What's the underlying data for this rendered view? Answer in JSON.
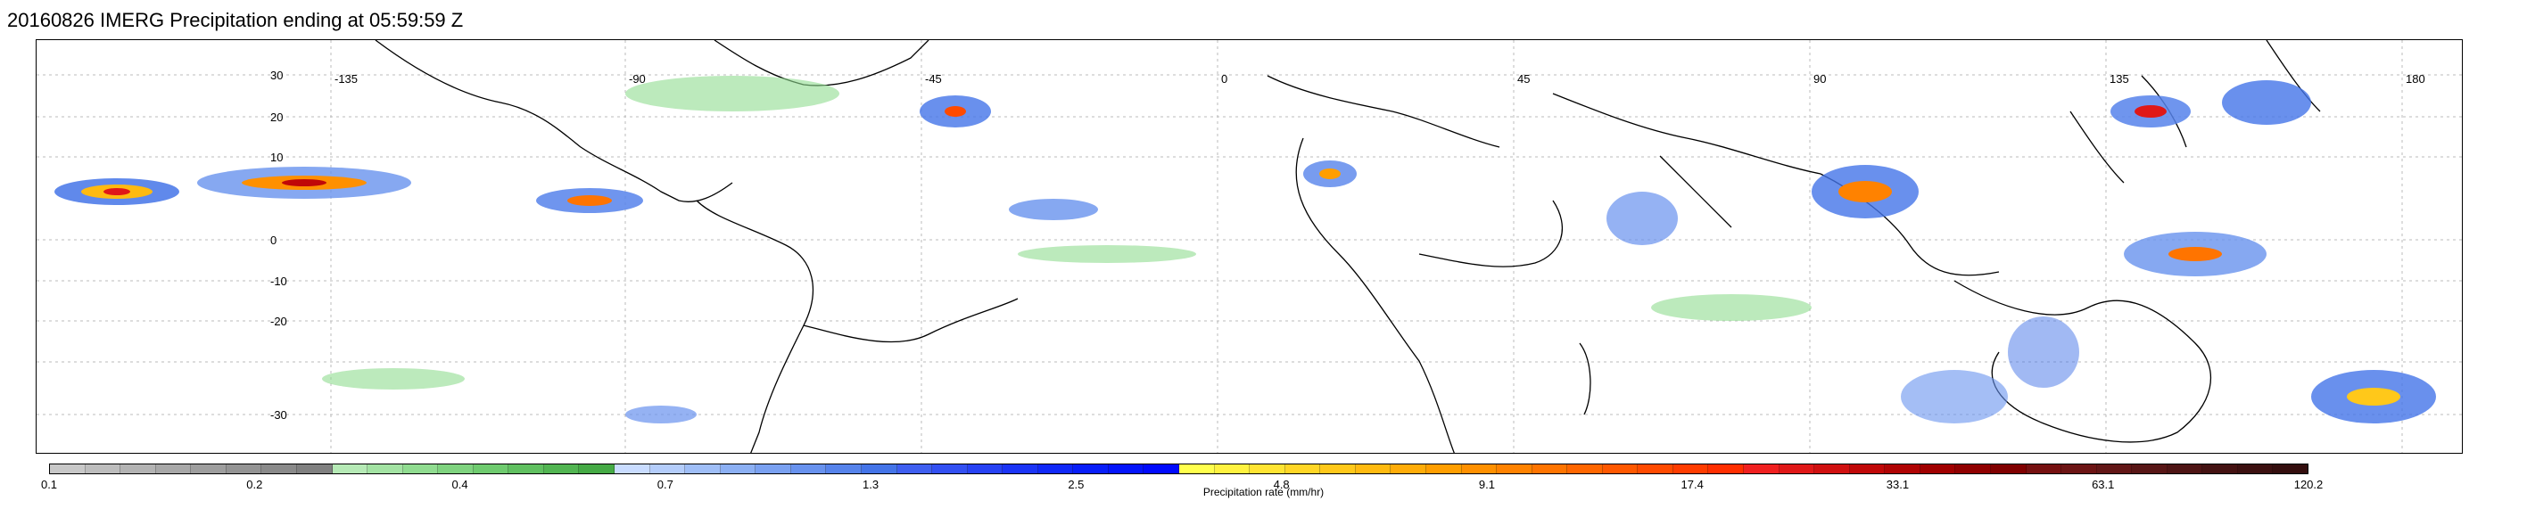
{
  "title": "20160826 IMERG Precipitation ending at 05:59:59 Z",
  "map": {
    "lon_labels": [
      "-135",
      "-90",
      "-45",
      "0",
      "45",
      "90",
      "135",
      "180"
    ],
    "lat_labels": [
      "30",
      "20",
      "10",
      "0",
      "-10",
      "-20",
      "-30"
    ],
    "grid": true
  },
  "colorbar": {
    "label": "Precipitation rate (mm/hr)",
    "tick_labels": [
      "0.1",
      "0.2",
      "0.4",
      "0.7",
      "1.3",
      "2.5",
      "4.8",
      "9.1",
      "17.4",
      "33.1",
      "63.1",
      "120.2"
    ],
    "colors": [
      "#c8c8c8",
      "#bdbdbd",
      "#b3b3b3",
      "#a8a8a8",
      "#9e9e9e",
      "#949494",
      "#8a8a8a",
      "#808080",
      "#b6eab6",
      "#a3e3a3",
      "#90dc90",
      "#7fd37f",
      "#6fcb6f",
      "#60c060",
      "#52b552",
      "#45aa45",
      "#c9dcff",
      "#b4cdfb",
      "#9fbef7",
      "#8cb0f4",
      "#7aa1f1",
      "#6892ee",
      "#5683eb",
      "#4474e8",
      "#3f5ff0",
      "#3350f2",
      "#2742f4",
      "#1b34f6",
      "#1028f8",
      "#081ef9",
      "#0414fb",
      "#000afd",
      "#ffff4d",
      "#fff240",
      "#ffe433",
      "#ffd626",
      "#ffc81a",
      "#ffba10",
      "#ffac08",
      "#ff9e00",
      "#ff9000",
      "#ff8200",
      "#ff7400",
      "#ff6600",
      "#ff5800",
      "#ff4a00",
      "#ff3c00",
      "#ff2e00",
      "#f02020",
      "#e01818",
      "#d01010",
      "#c00808",
      "#b00404",
      "#a00000",
      "#900000",
      "#800000",
      "#761010",
      "#6c1414",
      "#621616",
      "#581616",
      "#4e1414",
      "#441212",
      "#3c1010",
      "#340e0e"
    ]
  }
}
